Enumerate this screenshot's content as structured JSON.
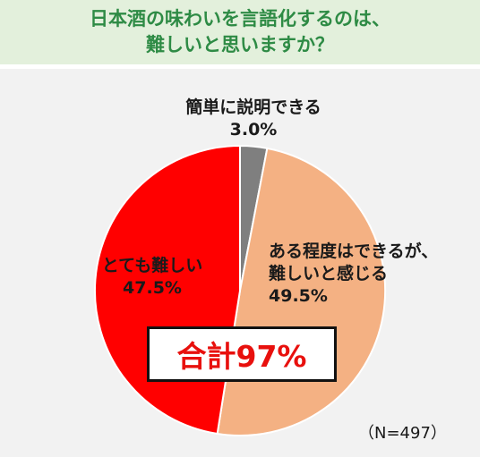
{
  "title": {
    "line1": "日本酒の味わいを言語化するのは、",
    "line2": "難しいと思いますか？"
  },
  "chart_data": {
    "type": "pie",
    "start": "12 o'clock, clockwise",
    "slices": [
      {
        "label": "簡単に説明できる",
        "value": 3.0,
        "value_label": "3.0%",
        "color": "#7f7f7f"
      },
      {
        "label_lines": [
          "ある程度はできるが、",
          "難しいと感じる"
        ],
        "value": 49.5,
        "value_label": "49.5%",
        "color": "#f4b183"
      },
      {
        "label": "とても難しい",
        "value": 47.5,
        "value_label": "47.5%",
        "color": "#ff0000"
      }
    ]
  },
  "total_callout": "合計97%",
  "sample_size": "（N=497）"
}
